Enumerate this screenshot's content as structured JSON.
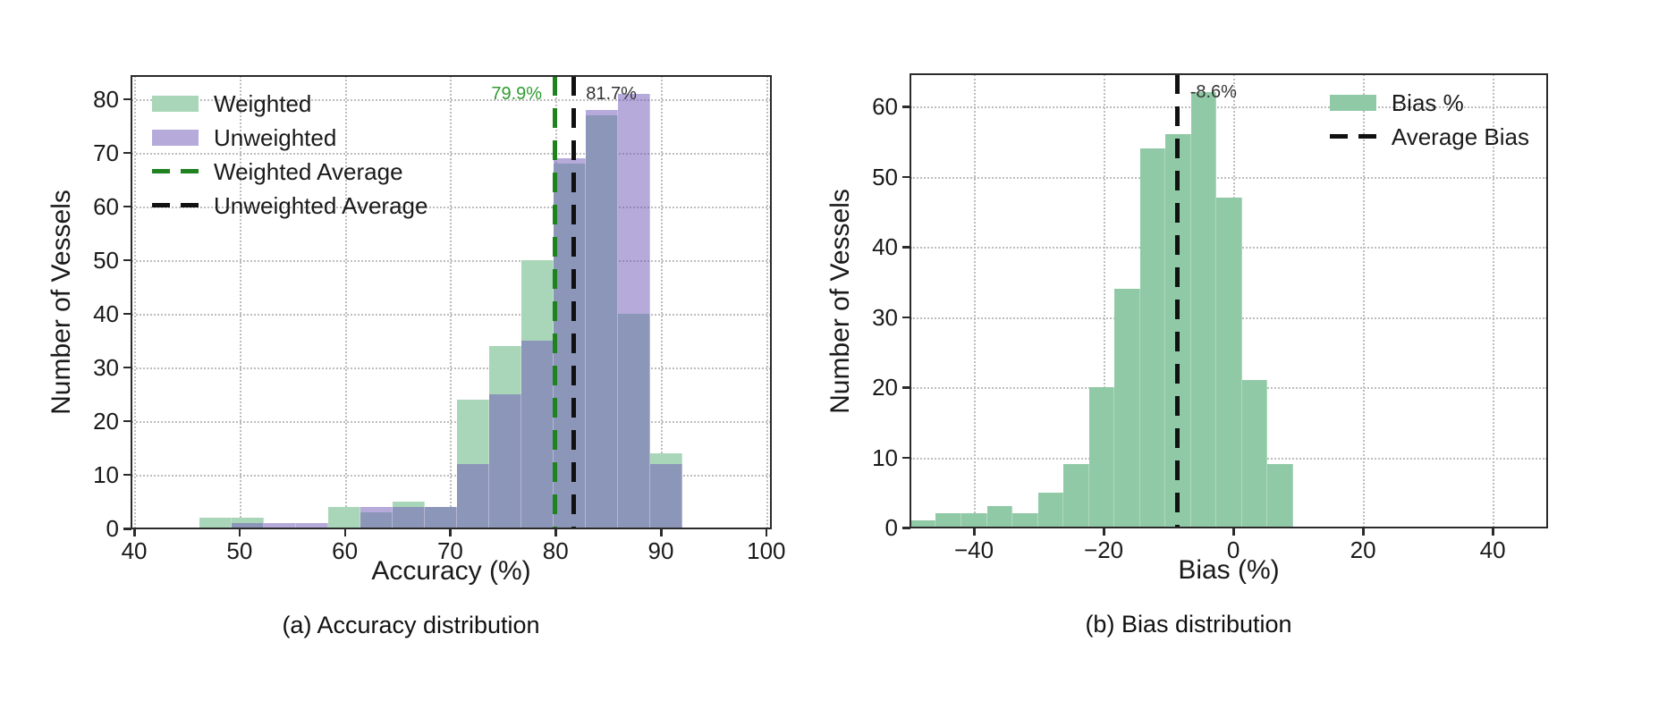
{
  "figure": {
    "background": "#ffffff",
    "text_color": "#1a1a1a"
  },
  "chart_data": [
    {
      "type": "bar",
      "subtype": "histogram",
      "caption": "(a) Accuracy distribution",
      "xlabel": "Accuracy (%)",
      "ylabel": "Number of Vessels",
      "xlim": [
        39.74,
        100.44
      ],
      "ylim": [
        0,
        84.3
      ],
      "xticks": [
        40,
        50,
        60,
        70,
        80,
        90,
        100
      ],
      "yticks": [
        0,
        10,
        20,
        30,
        40,
        50,
        60,
        70,
        80
      ],
      "grid": true,
      "bin_edges": [
        46.2,
        49.25,
        52.31,
        55.36,
        58.41,
        61.47,
        64.52,
        67.57,
        70.63,
        73.68,
        76.73,
        79.79,
        82.84,
        85.89,
        88.95,
        92.0
      ],
      "series": [
        {
          "name": "Weighted",
          "values": [
            2,
            2,
            0,
            0,
            4,
            3,
            5,
            4,
            24,
            34,
            50,
            68,
            77,
            40,
            14
          ],
          "color": "#a9d6b8",
          "legend_swatch": "#a9d6b8"
        },
        {
          "name": "Unweighted",
          "values": [
            0,
            1,
            1,
            1,
            0,
            4,
            4,
            4,
            12,
            25,
            35,
            69,
            78,
            81,
            12
          ],
          "color": "rgba(109,85,183,0.5)",
          "legend_swatch": "#b6aadb"
        }
      ],
      "vlines": [
        {
          "name": "Weighted Average",
          "x": 79.9,
          "label": "79.9%",
          "color": "#1f821f",
          "label_color": "#2e9b2e",
          "label_side": "left"
        },
        {
          "name": "Unweighted Average",
          "x": 81.7,
          "label": "81.7%",
          "color": "#111111",
          "label_color": "#333333",
          "label_side": "right"
        }
      ],
      "legend": {
        "position": "top-left",
        "items": [
          {
            "label": "Weighted",
            "swatch": "patch",
            "color": "#a9d6b8"
          },
          {
            "label": "Unweighted",
            "swatch": "patch",
            "color": "#b6aadb"
          },
          {
            "label": "Weighted Average",
            "swatch": "dash",
            "color": "#1f821f"
          },
          {
            "label": "Unweighted Average",
            "swatch": "dash",
            "color": "#111111"
          }
        ]
      }
    },
    {
      "type": "bar",
      "subtype": "histogram",
      "caption": "(b) Bias distribution",
      "xlabel": "Bias (%)",
      "ylabel": "Number of Vessels",
      "xlim": [
        -49.8,
        48.4
      ],
      "ylim": [
        0,
        64.6
      ],
      "xticks": [
        -40,
        -20,
        0,
        20,
        40
      ],
      "yticks": [
        0,
        10,
        20,
        30,
        40,
        50,
        60
      ],
      "grid": true,
      "bin_edges": [
        -49.8,
        -45.87,
        -41.93,
        -38.0,
        -34.07,
        -30.13,
        -26.2,
        -22.27,
        -18.33,
        -14.4,
        -10.47,
        -6.53,
        -2.6,
        1.33,
        5.27,
        9.2
      ],
      "series": [
        {
          "name": "Bias %",
          "values": [
            1,
            2,
            2,
            3,
            2,
            5,
            9,
            20,
            34,
            54,
            56,
            62,
            47,
            21,
            9
          ],
          "color": "#90c9a6",
          "legend_swatch": "#90c9a6"
        }
      ],
      "vlines": [
        {
          "name": "Average Bias",
          "x": -8.6,
          "label": "-8.6%",
          "color": "#111111",
          "label_color": "#333333",
          "label_side": "right"
        }
      ],
      "legend": {
        "position": "top-right",
        "items": [
          {
            "label": "Bias %",
            "swatch": "patch",
            "color": "#90c9a6"
          },
          {
            "label": "Average Bias",
            "swatch": "dash",
            "color": "#111111"
          }
        ]
      }
    }
  ]
}
